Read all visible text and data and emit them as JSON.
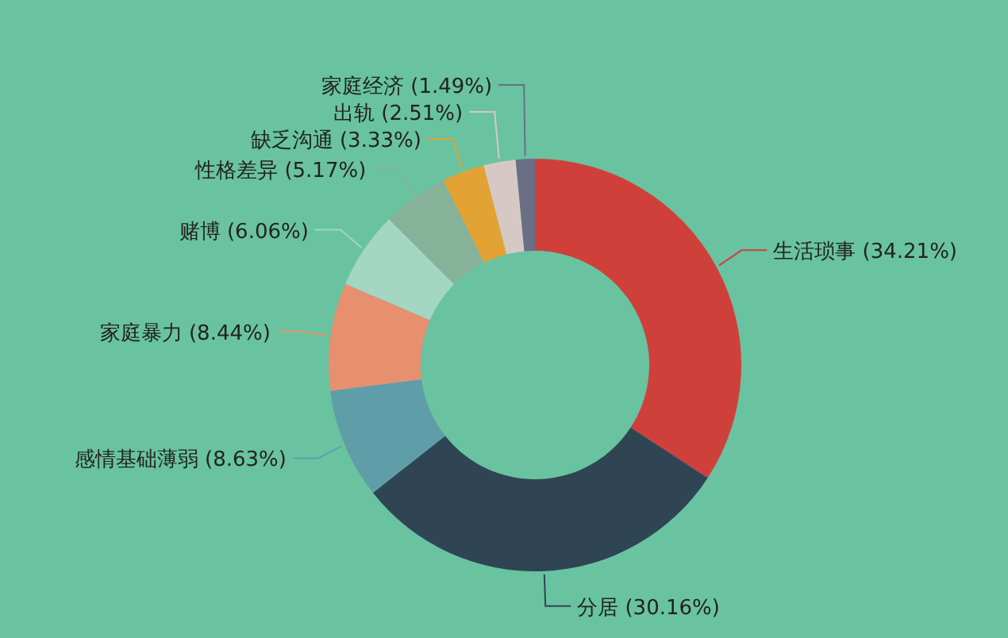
{
  "chart_data": {
    "type": "donut",
    "categories": [
      "生活琐事",
      "分居",
      "感情基础薄弱",
      "家庭暴力",
      "赌博",
      "性格差异",
      "缺乏沟通",
      "出轨",
      "家庭经济"
    ],
    "values": [
      34.21,
      30.16,
      8.63,
      8.44,
      6.06,
      5.17,
      3.33,
      2.51,
      1.49
    ],
    "value_labels": [
      "(34.21%)",
      "(30.16%)",
      "(8.63%)",
      "(8.44%)",
      "(6.06%)",
      "(5.17%)",
      "(3.33%)",
      "(2.51%)",
      "(1.49%)"
    ],
    "colors": [
      "#d0403a",
      "#2f4553",
      "#5f9ea9",
      "#e6906f",
      "#a3d6c3",
      "#86b39a",
      "#e3a234",
      "#d6c9c5",
      "#6b6f86"
    ],
    "legend": false
  }
}
